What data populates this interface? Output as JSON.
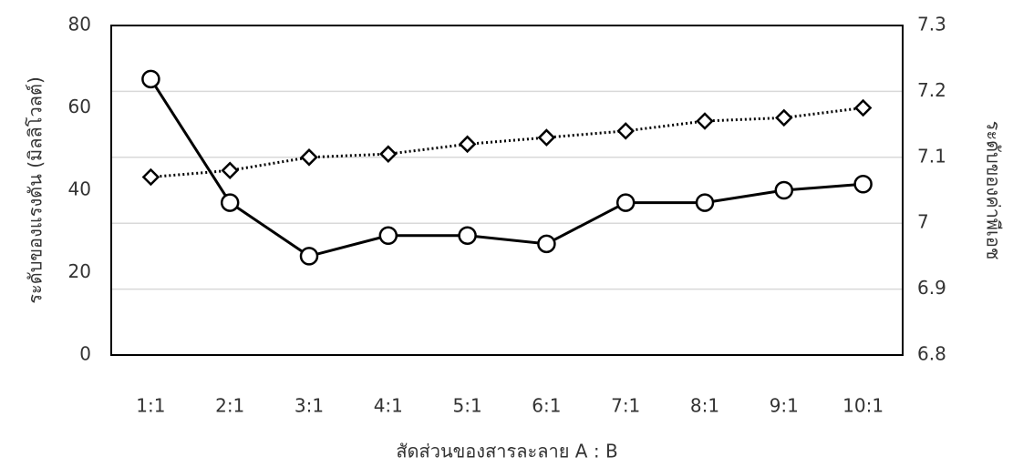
{
  "chart_data": {
    "type": "line",
    "categories": [
      "1:1",
      "2:1",
      "3:1",
      "4:1",
      "5:1",
      "6:1",
      "7:1",
      "8:1",
      "9:1",
      "10:1"
    ],
    "series": [
      {
        "color": "#000000",
        "line_style": "solid",
        "marker": "circle",
        "axis": "y",
        "values": [
          67,
          37,
          24,
          29,
          29,
          27,
          37,
          37,
          40,
          41.5
        ]
      },
      {
        "color": "#000000",
        "line_style": "dotted",
        "marker": "diamond",
        "axis": "y2",
        "values": [
          7.07,
          7.08,
          7.1,
          7.105,
          7.12,
          7.13,
          7.14,
          7.155,
          7.16,
          7.175
        ]
      }
    ],
    "ylim": [
      0,
      80
    ],
    "yticks": [
      0,
      20,
      40,
      60,
      80
    ],
    "y2lim": [
      6.8,
      7.3
    ],
    "y2ticks": [
      6.8,
      6.9,
      7,
      7.1,
      7.2,
      7.3
    ],
    "grid": "y2",
    "xlabel": "สัดส่วนของสารละลาย A : B",
    "ylabel": "ระดับของแรงดัน (มิลลิโวลต์)",
    "y2label": "ระดับของค่าพีเอช"
  }
}
